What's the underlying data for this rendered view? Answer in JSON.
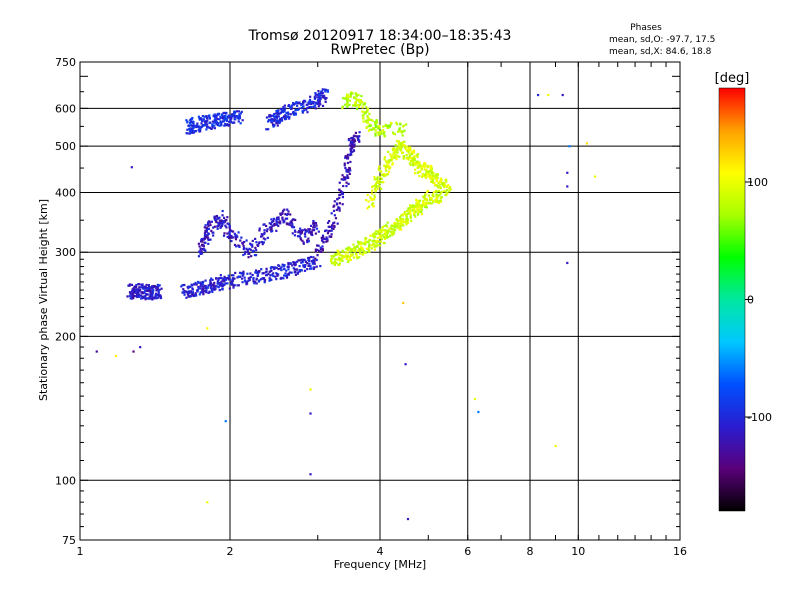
{
  "chart_data": {
    "type": "scatter",
    "title": "Tromsø 20120917 18:34:00–18:35:43",
    "subtitle": "RwPretec (Bp)",
    "xlabel": "Frequency [MHz]",
    "ylabel": "Stationary phase Virtual Height [km]",
    "x_scale": "log2",
    "y_scale": "log",
    "xlim": [
      1,
      16
    ],
    "ylim": [
      75,
      750
    ],
    "x_ticks": [
      1,
      2,
      4,
      6,
      8,
      10,
      16
    ],
    "x_tick_labels": [
      "1",
      "2",
      "4",
      "6",
      "8",
      "10",
      "16"
    ],
    "y_ticks": [
      75,
      100,
      200,
      300,
      400,
      500,
      600,
      750
    ],
    "y_tick_labels": [
      "75",
      "100",
      "200",
      "300",
      "400",
      "500",
      "600",
      "750"
    ],
    "grid": true,
    "stats_title": "Phases",
    "stats_o": "mean, sd,O: -97.7, 17.5",
    "stats_x": "mean, sd,X:  84.6, 18.8",
    "colorbar": {
      "label": "[deg]",
      "range": [
        -180,
        180
      ],
      "ticks": [
        100,
        0,
        -100
      ],
      "tick_labels": [
        "100",
        "0",
        "-100"
      ],
      "colormap": [
        "#000000",
        "#5a007a",
        "#2a1dd0",
        "#0050ff",
        "#00c8ff",
        "#00e8a0",
        "#00ff00",
        "#a8ff00",
        "#ffff00",
        "#ffa000",
        "#ff0000"
      ]
    },
    "traces": [
      {
        "mode": "O",
        "phase_deg": -105,
        "points": [
          [
            1.62,
            248
          ],
          [
            1.7,
            251
          ],
          [
            1.8,
            254
          ],
          [
            1.9,
            258
          ],
          [
            2.0,
            262
          ],
          [
            2.2,
            266
          ],
          [
            2.4,
            270
          ],
          [
            2.6,
            275
          ],
          [
            2.8,
            281
          ],
          [
            3.0,
            288
          ]
        ]
      },
      {
        "mode": "O",
        "phase_deg": -110,
        "points": [
          [
            1.26,
            248
          ],
          [
            1.3,
            249
          ],
          [
            1.35,
            248
          ],
          [
            1.4,
            247
          ],
          [
            1.45,
            249
          ]
        ]
      },
      {
        "mode": "O",
        "phase_deg": -95,
        "points": [
          [
            1.65,
            548
          ],
          [
            1.7,
            555
          ],
          [
            1.8,
            560
          ],
          [
            1.9,
            565
          ],
          [
            2.0,
            570
          ],
          [
            2.1,
            575
          ]
        ]
      },
      {
        "mode": "O",
        "phase_deg": -100,
        "points": [
          [
            2.4,
            560
          ],
          [
            2.5,
            575
          ],
          [
            2.6,
            590
          ],
          [
            2.8,
            605
          ],
          [
            3.0,
            625
          ],
          [
            3.1,
            640
          ]
        ]
      },
      {
        "mode": "O",
        "phase_deg": -115,
        "points": [
          [
            1.75,
            300
          ],
          [
            1.8,
            330
          ],
          [
            1.9,
            355
          ],
          [
            2.0,
            330
          ],
          [
            2.2,
            300
          ],
          [
            2.4,
            340
          ],
          [
            2.6,
            360
          ],
          [
            2.8,
            320
          ],
          [
            3.0,
            340
          ]
        ]
      },
      {
        "mode": "O",
        "phase_deg": -120,
        "points": [
          [
            3.0,
            300
          ],
          [
            3.2,
            340
          ],
          [
            3.4,
            420
          ],
          [
            3.5,
            500
          ],
          [
            3.6,
            520
          ]
        ]
      },
      {
        "mode": "X",
        "phase_deg": 88,
        "points": [
          [
            3.2,
            290
          ],
          [
            3.4,
            295
          ],
          [
            3.6,
            302
          ],
          [
            3.8,
            312
          ],
          [
            4.0,
            322
          ],
          [
            4.2,
            335
          ],
          [
            4.4,
            348
          ],
          [
            4.6,
            362
          ],
          [
            4.8,
            375
          ],
          [
            5.0,
            390
          ],
          [
            5.4,
            395
          ]
        ]
      },
      {
        "mode": "X",
        "phase_deg": 92,
        "points": [
          [
            3.8,
            380
          ],
          [
            4.0,
            430
          ],
          [
            4.2,
            470
          ],
          [
            4.4,
            500
          ],
          [
            4.6,
            480
          ],
          [
            4.8,
            450
          ],
          [
            5.0,
            440
          ],
          [
            5.2,
            420
          ],
          [
            5.5,
            410
          ]
        ]
      },
      {
        "mode": "X",
        "phase_deg": 80,
        "points": [
          [
            3.4,
            620
          ],
          [
            3.6,
            630
          ],
          [
            3.8,
            560
          ],
          [
            4.0,
            540
          ],
          [
            4.5,
            545
          ]
        ]
      }
    ],
    "outliers": [
      {
        "x": 1.08,
        "y": 186,
        "phase_deg": -130
      },
      {
        "x": 1.28,
        "y": 186,
        "phase_deg": -140
      },
      {
        "x": 1.32,
        "y": 190,
        "phase_deg": -110
      },
      {
        "x": 1.18,
        "y": 182,
        "phase_deg": 110
      },
      {
        "x": 1.8,
        "y": 208,
        "phase_deg": 110
      },
      {
        "x": 1.27,
        "y": 452,
        "phase_deg": -110
      },
      {
        "x": 1.96,
        "y": 133,
        "phase_deg": -60
      },
      {
        "x": 2.9,
        "y": 155,
        "phase_deg": 100
      },
      {
        "x": 2.9,
        "y": 103,
        "phase_deg": -110
      },
      {
        "x": 2.9,
        "y": 138,
        "phase_deg": -110
      },
      {
        "x": 4.5,
        "y": 175,
        "phase_deg": -110
      },
      {
        "x": 4.45,
        "y": 235,
        "phase_deg": 130
      },
      {
        "x": 4.55,
        "y": 83,
        "phase_deg": -110
      },
      {
        "x": 6.2,
        "y": 148,
        "phase_deg": 100
      },
      {
        "x": 6.3,
        "y": 139,
        "phase_deg": -60
      },
      {
        "x": 8.3,
        "y": 640,
        "phase_deg": -100
      },
      {
        "x": 8.7,
        "y": 640,
        "phase_deg": 100
      },
      {
        "x": 9.3,
        "y": 640,
        "phase_deg": -110
      },
      {
        "x": 9.5,
        "y": 285,
        "phase_deg": -110
      },
      {
        "x": 9.5,
        "y": 412,
        "phase_deg": -110
      },
      {
        "x": 9.5,
        "y": 440,
        "phase_deg": -110
      },
      {
        "x": 9.6,
        "y": 500,
        "phase_deg": -60
      },
      {
        "x": 10.4,
        "y": 507,
        "phase_deg": 120
      },
      {
        "x": 10.8,
        "y": 432,
        "phase_deg": 100
      },
      {
        "x": 9.0,
        "y": 118,
        "phase_deg": 100
      },
      {
        "x": 1.8,
        "y": 90,
        "phase_deg": 100
      }
    ]
  }
}
